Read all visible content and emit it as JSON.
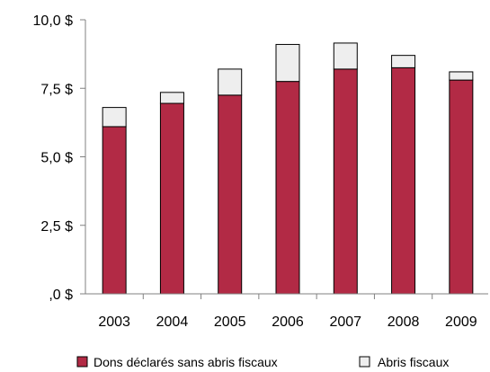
{
  "chart_data": {
    "type": "bar",
    "stacked": true,
    "categories": [
      "2003",
      "2004",
      "2005",
      "2006",
      "2007",
      "2008",
      "2009"
    ],
    "series": [
      {
        "name": "Dons déclarés sans abris fiscaux",
        "color": "#b22a45",
        "values": [
          6.1,
          6.95,
          7.25,
          7.75,
          8.2,
          8.25,
          7.8
        ]
      },
      {
        "name": "Abris fiscaux",
        "color": "#eeeeee",
        "values": [
          0.7,
          0.4,
          0.95,
          1.35,
          0.95,
          0.45,
          0.3
        ]
      }
    ],
    "ylim": [
      0,
      10
    ],
    "yticks": [
      {
        "value": 0,
        "label": ",0 $"
      },
      {
        "value": 2.5,
        "label": "2,5 $"
      },
      {
        "value": 5,
        "label": "5,0 $"
      },
      {
        "value": 7.5,
        "label": "7,5 $"
      },
      {
        "value": 10,
        "label": "10,0 $"
      }
    ],
    "grid": false,
    "legend_position": "bottom",
    "title": "",
    "xlabel": "",
    "ylabel": ""
  }
}
